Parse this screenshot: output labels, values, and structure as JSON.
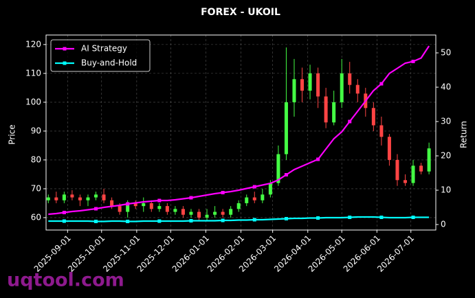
{
  "chart_data": {
    "type": "candlestick",
    "title": "FOREX - UKOIL",
    "ylabel": "Price",
    "y2label": "Return",
    "watermark": "uqtool.com",
    "x": [
      "2025-08-15",
      "2025-08-22",
      "2025-08-29",
      "2025-09-05",
      "2025-09-12",
      "2025-09-19",
      "2025-09-26",
      "2025-10-03",
      "2025-10-10",
      "2025-10-17",
      "2025-10-24",
      "2025-10-31",
      "2025-11-07",
      "2025-11-14",
      "2025-11-21",
      "2025-11-28",
      "2025-12-05",
      "2025-12-12",
      "2025-12-19",
      "2025-12-26",
      "2026-01-02",
      "2026-01-09",
      "2026-01-16",
      "2026-01-23",
      "2026-01-30",
      "2026-02-06",
      "2026-02-13",
      "2026-02-20",
      "2026-02-27",
      "2026-03-06",
      "2026-03-13",
      "2026-03-20",
      "2026-03-27",
      "2026-04-03",
      "2026-04-10",
      "2026-04-17",
      "2026-04-24",
      "2026-05-01",
      "2026-05-08",
      "2026-05-15",
      "2026-05-22",
      "2026-05-29",
      "2026-06-05",
      "2026-06-12",
      "2026-06-19",
      "2026-06-26",
      "2026-07-03",
      "2026-07-10",
      "2026-07-17"
    ],
    "candles": {
      "up_color": "#44ff44",
      "down_color": "#ff4444",
      "open": [
        66,
        67,
        66,
        68,
        67,
        66,
        67,
        68,
        66,
        64,
        62,
        65,
        64,
        65,
        63,
        64,
        62,
        63,
        61,
        62,
        60,
        61,
        62,
        61,
        63,
        65,
        67,
        66,
        68,
        72,
        82,
        100,
        108,
        104,
        110,
        102,
        93,
        100,
        110,
        106,
        103,
        98,
        92,
        88,
        80,
        73,
        72,
        78,
        76
      ],
      "high": [
        68,
        69,
        69,
        69.5,
        68,
        68,
        69,
        70,
        67,
        65,
        66,
        66,
        67,
        66,
        65,
        65,
        64,
        64,
        63,
        63,
        63,
        64,
        63,
        64,
        66,
        68,
        69,
        70,
        73,
        85,
        119,
        115,
        112,
        113,
        112,
        105,
        104,
        115,
        114,
        108,
        105,
        100,
        95,
        89,
        82,
        75,
        80,
        79,
        86
      ],
      "low": [
        65,
        65,
        65,
        66,
        64,
        64,
        66,
        65,
        63,
        61,
        60,
        63,
        62,
        62,
        62,
        61,
        61,
        60,
        60,
        59,
        59,
        60,
        60,
        60,
        62,
        64,
        65,
        65,
        67,
        71,
        80,
        95,
        100,
        101,
        98,
        91,
        92,
        98,
        103,
        100,
        95,
        90,
        85,
        78,
        71,
        71,
        71,
        75,
        75
      ],
      "close": [
        67,
        66,
        68,
        67,
        66,
        67,
        68,
        66,
        64,
        62,
        65,
        64,
        65,
        63,
        64,
        62,
        63,
        61,
        62,
        60,
        61,
        62,
        61,
        63,
        65,
        67,
        66,
        68,
        72,
        82,
        100,
        108,
        104,
        110,
        102,
        93,
        100,
        110,
        106,
        103,
        98,
        92,
        88,
        80,
        73,
        72,
        78,
        76,
        84
      ]
    },
    "series": [
      {
        "name": "AI Strategy",
        "color": "#ff00ff",
        "axis": "y2",
        "values": [
          3,
          3.2,
          3.5,
          3.8,
          4,
          4.3,
          4.6,
          5,
          5.3,
          5.6,
          6,
          6.3,
          6.6,
          6.8,
          7,
          7,
          7.2,
          7.5,
          7.8,
          8.2,
          8.6,
          9,
          9.3,
          9.6,
          10,
          10.5,
          11,
          11.5,
          12,
          13,
          14.5,
          16,
          17,
          18,
          19,
          22,
          25,
          27,
          30,
          33,
          36,
          39,
          41,
          44,
          45.5,
          47,
          47.5,
          48.5,
          52
        ]
      },
      {
        "name": "Buy-and-Hold",
        "color": "#00ffff",
        "axis": "y2",
        "values": [
          1,
          1,
          1,
          1,
          1,
          1,
          0.9,
          0.9,
          1,
          1,
          0.9,
          0.9,
          1,
          1,
          1,
          1,
          1,
          1,
          1.1,
          1.1,
          1.1,
          1.1,
          1.2,
          1.2,
          1.3,
          1.3,
          1.4,
          1.4,
          1.5,
          1.6,
          1.7,
          1.8,
          1.8,
          1.9,
          1.9,
          2,
          2,
          2,
          2.1,
          2.2,
          2.2,
          2.2,
          2.1,
          2,
          2,
          2,
          2.1,
          2.1,
          2.1
        ]
      }
    ],
    "xlim": [
      "2025-08-13",
      "2026-07-23"
    ],
    "xticks": [
      "2025-09-01",
      "2025-10-01",
      "2025-11-01",
      "2025-12-01",
      "2026-01-01",
      "2026-02-01",
      "2026-03-01",
      "2026-04-01",
      "2026-05-01",
      "2026-06-01",
      "2026-07-01"
    ],
    "ylim": [
      55.7,
      123.3
    ],
    "yticks": [
      60,
      70,
      80,
      90,
      100,
      110,
      120
    ],
    "y2lim": [
      -1.6,
      55.2
    ],
    "y2ticks": [
      0,
      10,
      20,
      30,
      40,
      50
    ],
    "grid": true,
    "legend": "upper left"
  }
}
